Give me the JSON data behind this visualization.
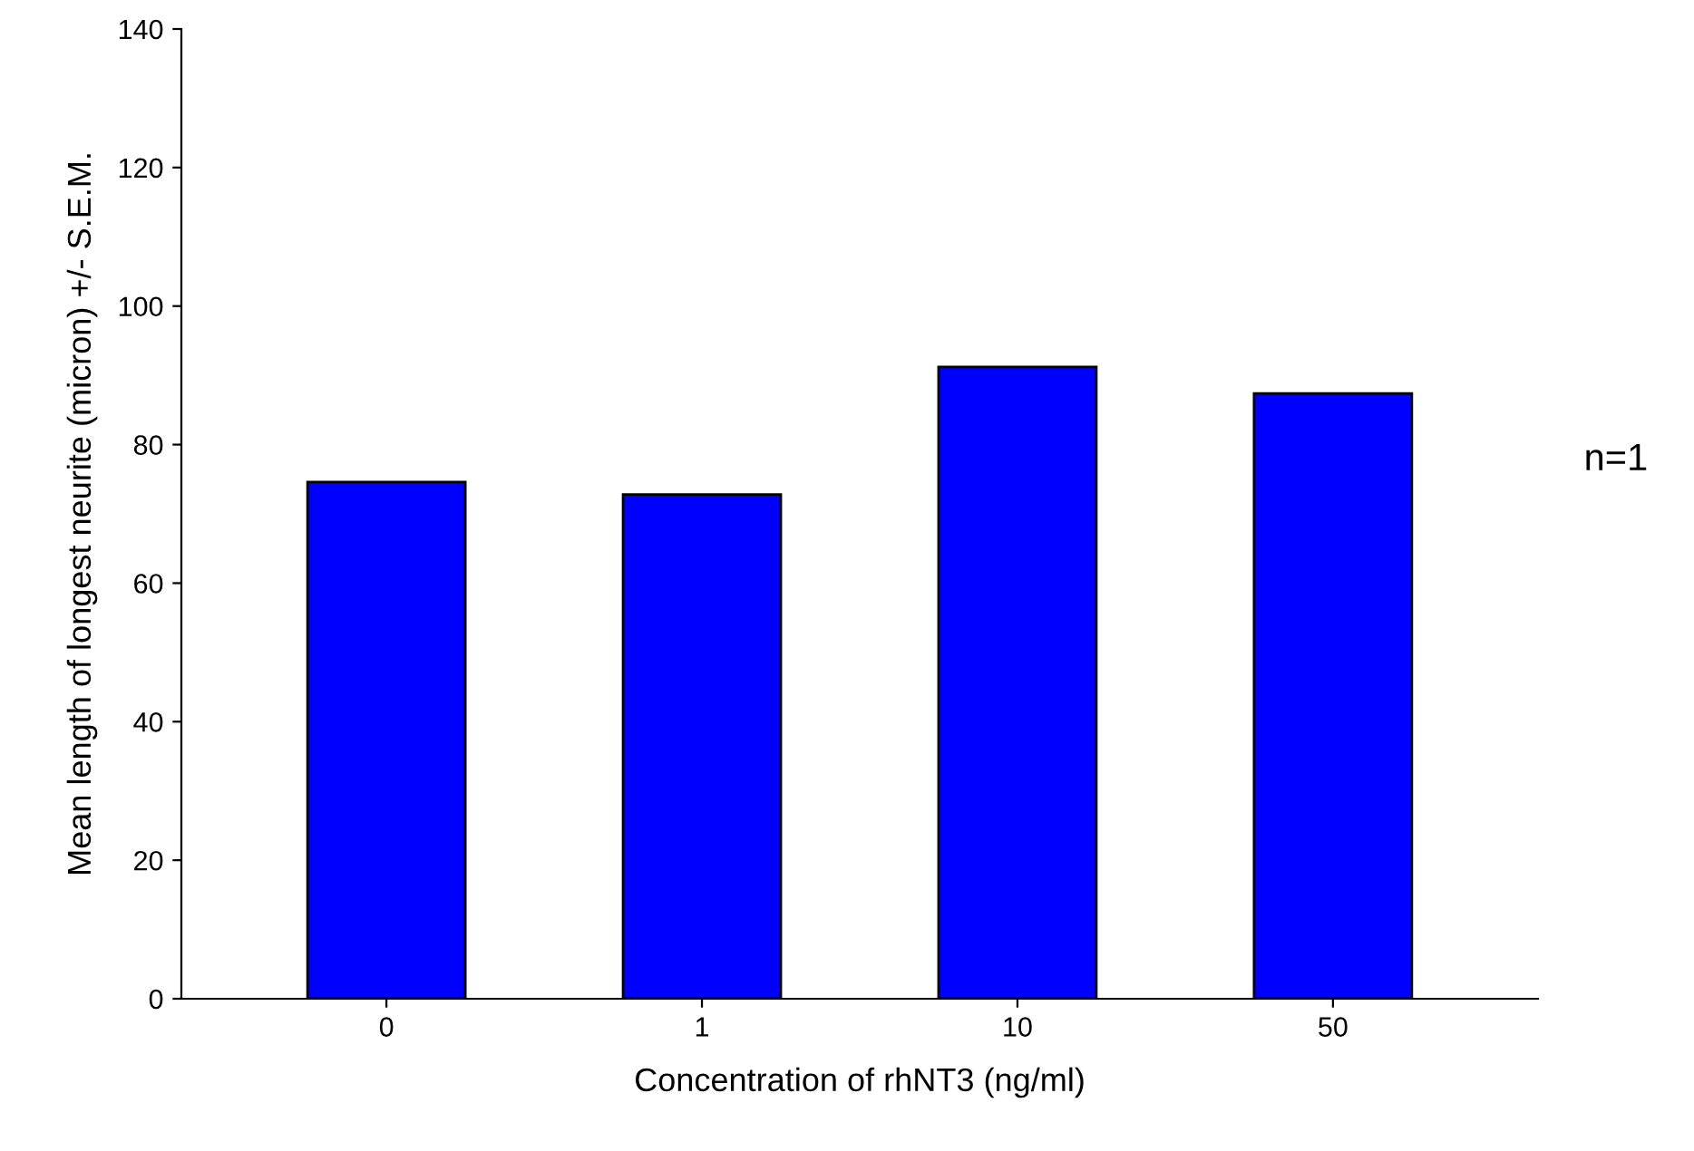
{
  "chart_data": {
    "type": "bar",
    "xlabel": "Concentration of rhNT3 (ng/ml)",
    "ylabel": "Mean length of longest neurite (micron) +/- S.E.M.",
    "categories": [
      "0",
      "1",
      "10",
      "50"
    ],
    "values": [
      74.6,
      72.8,
      91.2,
      87.4
    ],
    "color": "#0000ff",
    "ylim": [
      0,
      140
    ],
    "yticks": [
      0,
      20,
      40,
      60,
      80,
      100,
      120,
      140
    ],
    "annotations": [
      "n=1"
    ]
  }
}
